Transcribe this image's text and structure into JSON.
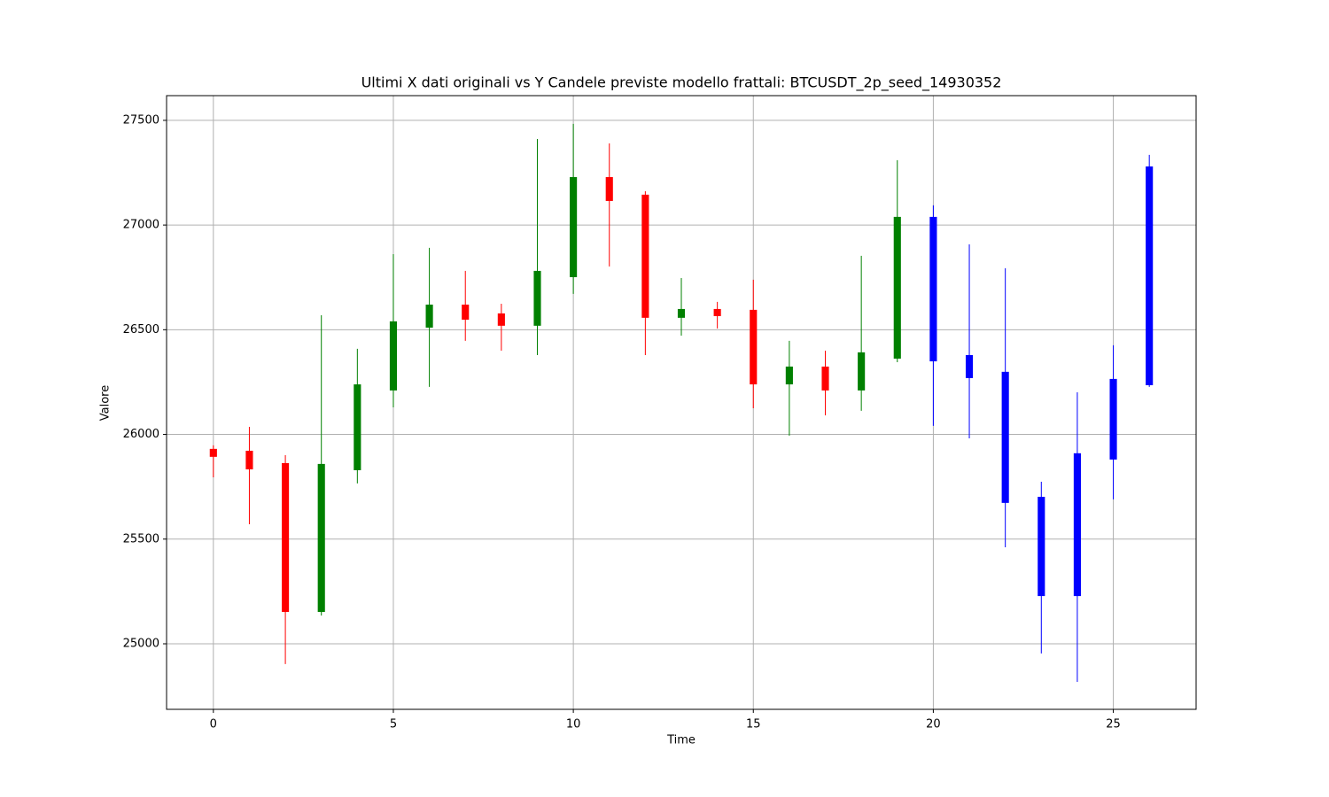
{
  "chart_data": {
    "type": "candlestick",
    "title": "Ultimi X dati originali vs Y Candele previste modello frattali: BTCUSDT_2p_seed_14930352",
    "x_label": "Time",
    "y_label": "Valore",
    "x": [
      0,
      1,
      2,
      3,
      4,
      5,
      6,
      7,
      8,
      9,
      10,
      11,
      12,
      13,
      14,
      15,
      16,
      17,
      18,
      19,
      20,
      21,
      22,
      23,
      24,
      25,
      26
    ],
    "open": [
      25931,
      25922,
      25863,
      25152,
      25829,
      26210,
      26510,
      26620,
      26578,
      26519,
      26751,
      27229,
      27145,
      26557,
      26599,
      26595,
      26239,
      26324,
      26210,
      26362,
      27039,
      26379,
      26299,
      25702,
      25228,
      25880,
      26235
    ],
    "high": [
      25948,
      26036,
      25901,
      26569,
      26409,
      26861,
      26891,
      26781,
      26624,
      27411,
      27483,
      27390,
      27162,
      26747,
      26633,
      26739,
      26447,
      26400,
      26853,
      27310,
      27094,
      26908,
      26794,
      25774,
      26201,
      26426,
      27335
    ],
    "low": [
      25795,
      25571,
      24903,
      25135,
      25766,
      26129,
      26227,
      26447,
      26400,
      26379,
      26671,
      26802,
      26379,
      26472,
      26506,
      26125,
      25994,
      26091,
      26113,
      26345,
      26041,
      25981,
      25461,
      24954,
      24818,
      25690,
      26227
    ],
    "close": [
      25893,
      25833,
      25152,
      25859,
      26239,
      26540,
      26620,
      26548,
      26519,
      26781,
      27229,
      27115,
      26557,
      26599,
      26565,
      26239,
      26324,
      26210,
      26392,
      27039,
      26349,
      26269,
      25673,
      25228,
      25910,
      26265,
      27280
    ],
    "colors": [
      "#ff0000",
      "#ff0000",
      "#ff0000",
      "#008000",
      "#008000",
      "#008000",
      "#008000",
      "#ff0000",
      "#ff0000",
      "#008000",
      "#008000",
      "#ff0000",
      "#ff0000",
      "#008000",
      "#ff0000",
      "#ff0000",
      "#008000",
      "#ff0000",
      "#008000",
      "#008000",
      "#0000ff",
      "#0000ff",
      "#0000ff",
      "#0000ff",
      "#0000ff",
      "#0000ff",
      "#0000ff"
    ],
    "xlim": [
      -1.3,
      27.3
    ],
    "ylim": [
      24687,
      27618
    ],
    "xticks": [
      0,
      5,
      10,
      15,
      20,
      25
    ],
    "yticks": [
      25000,
      25500,
      26000,
      26500,
      27000,
      27500
    ],
    "grid": true
  }
}
